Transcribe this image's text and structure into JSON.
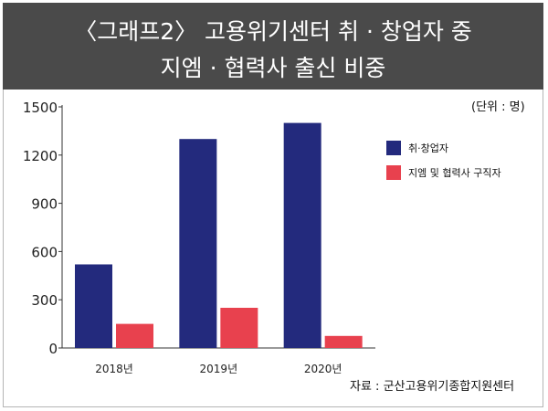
{
  "header": {
    "title_line1": "〈그래프2〉 고용위기센터 취 · 창업자 중",
    "title_line2": "지엠 · 협력사 출신 비중"
  },
  "unit_label": "(단위 : 명)",
  "source_label": "자료 : 군산고용위기종합지원센터",
  "colors": {
    "series1": "#232a7d",
    "series2": "#e8414e",
    "header_bg": "#4a4a4a"
  },
  "chart_data": {
    "type": "bar",
    "categories": [
      "2018년",
      "2019년",
      "2020년"
    ],
    "series": [
      {
        "name": "취·창업자",
        "values": [
          520,
          1300,
          1400
        ]
      },
      {
        "name": "지엠 및 협력사 구직자",
        "values": [
          150,
          250,
          75
        ]
      }
    ],
    "ylim": [
      0,
      1500
    ],
    "yticks": [
      0,
      300,
      600,
      900,
      1200,
      1500
    ],
    "grid": false,
    "legend": "right"
  }
}
